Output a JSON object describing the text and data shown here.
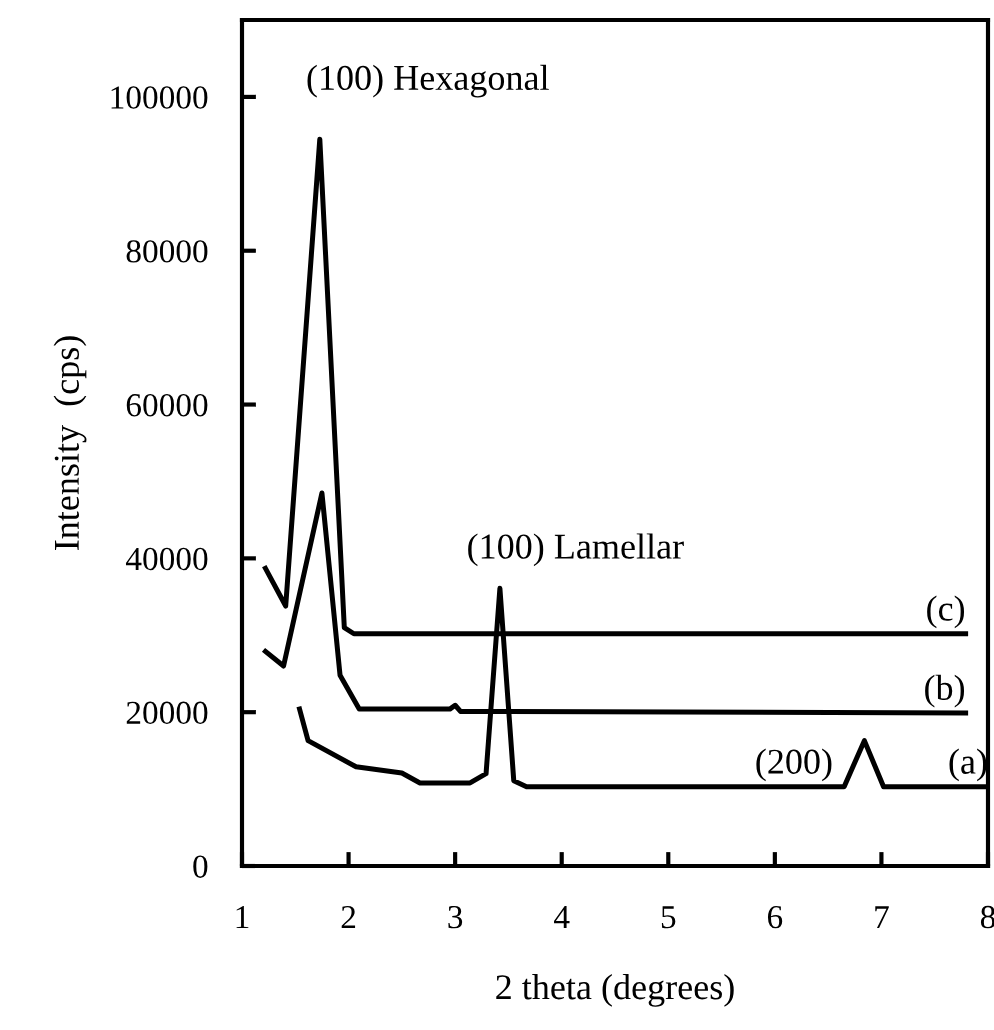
{
  "chart_data": {
    "type": "line",
    "xlabel": "2 theta (degrees)",
    "ylabel": "Intensity  (cps)",
    "xlim": [
      1,
      8
    ],
    "xticks": [
      1,
      2,
      3,
      4,
      5,
      6,
      7,
      8
    ],
    "ylim": [
      0,
      110000
    ],
    "yticks": [
      0,
      20000,
      40000,
      60000,
      80000,
      100000
    ],
    "grid": false,
    "legend": false,
    "marker": "none",
    "line_style": "solid",
    "series": [
      {
        "color": "#000000",
        "x": [
          1.54,
          1.62,
          2.07,
          2.5,
          2.67,
          3.14,
          3.29,
          3.42,
          3.55,
          3.67,
          6.65,
          6.84,
          7.02,
          8.0
        ],
        "values": [
          20400,
          16300,
          12900,
          12100,
          10800,
          10800,
          12000,
          36100,
          11100,
          10300,
          10300,
          16300,
          10300,
          10300
        ]
      },
      {
        "color": "#000000",
        "x": [
          1.22,
          1.39,
          1.75,
          1.92,
          2.1,
          2.95,
          3.0,
          3.05,
          7.79
        ],
        "values": [
          27900,
          26000,
          48500,
          24800,
          20400,
          20400,
          20900,
          20100,
          19900
        ]
      },
      {
        "color": "#000000",
        "x": [
          1.22,
          1.41,
          1.73,
          1.96,
          2.05,
          7.79
        ],
        "values": [
          38700,
          33800,
          94500,
          31000,
          30200,
          30200
        ]
      }
    ],
    "annotations": [
      {
        "text": "(100) Hexagonal",
        "x": 1.73,
        "y": 94500
      },
      {
        "text": "(100) Lamellar",
        "x": 3.42,
        "y": 36100
      },
      {
        "text": "(200)",
        "x": 6.65,
        "y": 10300
      },
      {
        "text": "(c)",
        "x": 7.79,
        "y": 30200
      },
      {
        "text": "(b)",
        "x": 7.79,
        "y": 19900
      },
      {
        "text": "(a)",
        "x": 8.0,
        "y": 10300
      }
    ]
  }
}
